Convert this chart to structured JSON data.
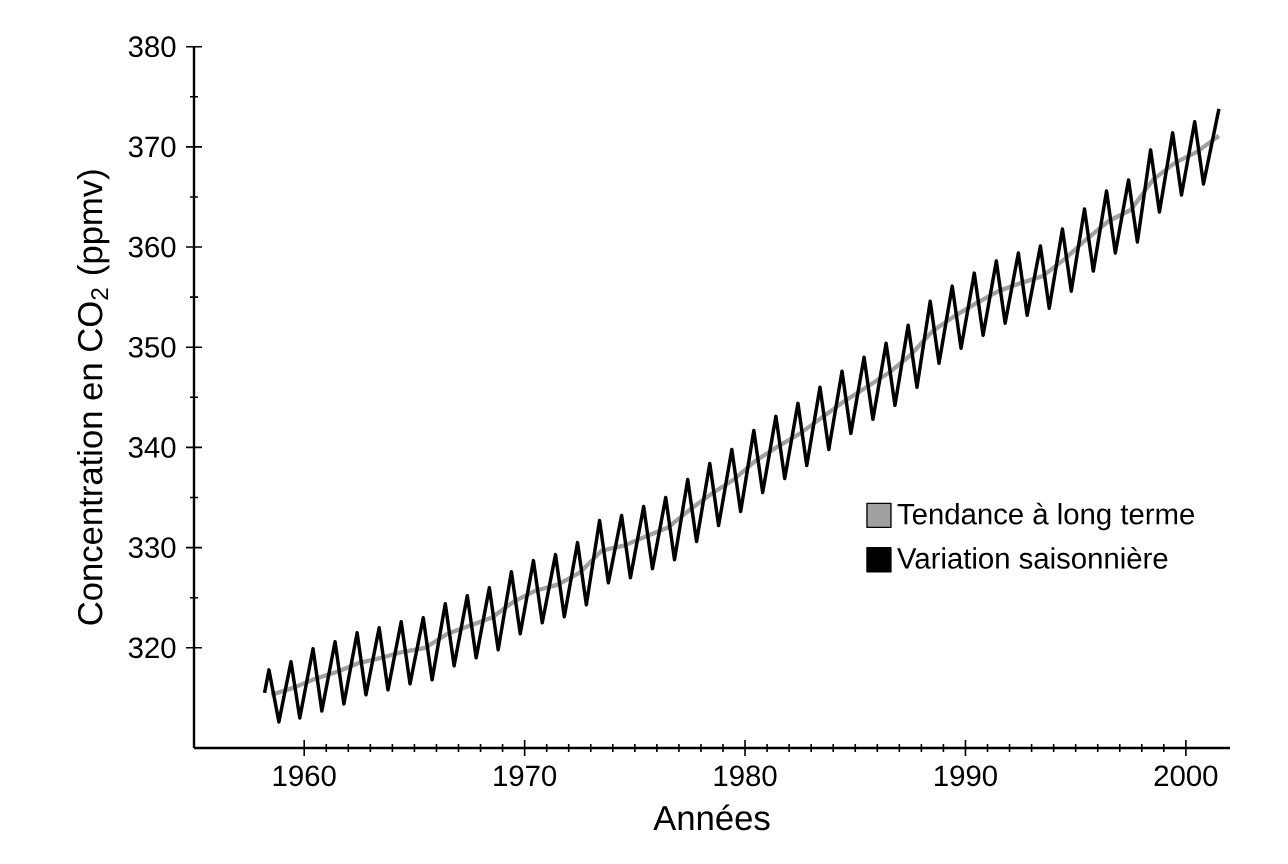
{
  "chart_data": {
    "type": "line",
    "xlabel": "Années",
    "ylabel": "Concentration en CO$_{2}$ (ppmv)",
    "xlim": [
      1955,
      2002
    ],
    "ylim": [
      310,
      380
    ],
    "xticks": [
      1960,
      1970,
      1980,
      1990,
      2000
    ],
    "yticks": [
      320,
      330,
      340,
      350,
      360,
      370,
      380
    ],
    "grid": false,
    "legend": "right",
    "marker": "none",
    "line_style": "solid",
    "series": [
      {
        "name": "Tendance à long terme",
        "color": "#a0a0a0",
        "x": [
          1958.5,
          1959.5,
          1960.5,
          1961.5,
          1962.5,
          1963.5,
          1964.5,
          1965.5,
          1966.5,
          1967.5,
          1968.5,
          1969.5,
          1970.5,
          1971.5,
          1972.5,
          1973.5,
          1974.5,
          1975.5,
          1976.5,
          1977.5,
          1978.5,
          1979.5,
          1980.5,
          1981.5,
          1982.5,
          1983.5,
          1984.5,
          1985.5,
          1986.5,
          1987.5,
          1988.5,
          1989.5,
          1990.5,
          1991.5,
          1992.5,
          1993.5,
          1994.5,
          1995.5,
          1996.5,
          1997.5,
          1998.5,
          1999.5,
          2000.5,
          2001.5
        ],
        "values": [
          315.3,
          316.0,
          316.9,
          317.6,
          318.5,
          319.0,
          319.6,
          320.0,
          321.4,
          322.2,
          323.0,
          324.6,
          325.7,
          326.3,
          327.5,
          329.7,
          330.2,
          331.1,
          332.0,
          333.8,
          335.4,
          336.8,
          338.7,
          340.1,
          341.4,
          343.0,
          344.6,
          346.0,
          347.4,
          349.2,
          351.6,
          353.1,
          354.4,
          355.6,
          356.4,
          357.1,
          358.8,
          360.8,
          362.6,
          363.7,
          366.7,
          368.4,
          369.5,
          371.1
        ]
      },
      {
        "name": "Variation saisonnière",
        "color": "#000000",
        "x": [
          1958.2,
          1958.4,
          1958.85,
          1959.4,
          1959.8,
          1960.4,
          1960.8,
          1961.4,
          1961.8,
          1962.4,
          1962.8,
          1963.4,
          1963.8,
          1964.4,
          1964.8,
          1965.4,
          1965.8,
          1966.4,
          1966.8,
          1967.4,
          1967.8,
          1968.4,
          1968.8,
          1969.4,
          1969.8,
          1970.4,
          1970.8,
          1971.4,
          1971.8,
          1972.4,
          1972.8,
          1973.4,
          1973.8,
          1974.4,
          1974.8,
          1975.4,
          1975.8,
          1976.4,
          1976.8,
          1977.4,
          1977.8,
          1978.4,
          1978.8,
          1979.4,
          1979.8,
          1980.4,
          1980.8,
          1981.4,
          1981.8,
          1982.4,
          1982.8,
          1983.4,
          1983.8,
          1984.4,
          1984.8,
          1985.4,
          1985.8,
          1986.4,
          1986.8,
          1987.4,
          1987.8,
          1988.4,
          1988.8,
          1989.4,
          1989.8,
          1990.4,
          1990.8,
          1991.4,
          1991.8,
          1992.4,
          1992.8,
          1993.4,
          1993.8,
          1994.4,
          1994.8,
          1995.4,
          1995.8,
          1996.4,
          1996.8,
          1997.4,
          1997.8,
          1998.4,
          1998.8,
          1999.4,
          1999.8,
          2000.4,
          2000.8,
          2001.5
        ],
        "values": [
          315.5,
          317.8,
          312.6,
          318.6,
          313.0,
          319.9,
          313.7,
          320.6,
          314.4,
          321.5,
          315.3,
          322.0,
          315.8,
          322.6,
          316.4,
          323.0,
          316.8,
          324.4,
          318.2,
          325.2,
          319.0,
          326.0,
          319.8,
          327.6,
          321.4,
          328.7,
          322.5,
          329.3,
          323.1,
          330.5,
          324.3,
          332.7,
          326.5,
          333.2,
          327.0,
          334.1,
          327.9,
          335.0,
          328.8,
          336.8,
          330.6,
          338.4,
          332.2,
          339.8,
          333.6,
          341.7,
          335.5,
          343.1,
          336.9,
          344.4,
          338.2,
          346.0,
          339.8,
          347.6,
          341.4,
          349.0,
          342.8,
          350.4,
          344.2,
          352.2,
          346.0,
          354.6,
          348.4,
          356.1,
          349.9,
          357.4,
          351.2,
          358.6,
          352.4,
          359.4,
          353.2,
          360.1,
          353.9,
          361.8,
          355.6,
          363.8,
          357.6,
          365.6,
          359.4,
          366.7,
          360.5,
          369.7,
          363.5,
          371.4,
          365.2,
          372.5,
          366.3,
          373.8
        ]
      }
    ]
  }
}
